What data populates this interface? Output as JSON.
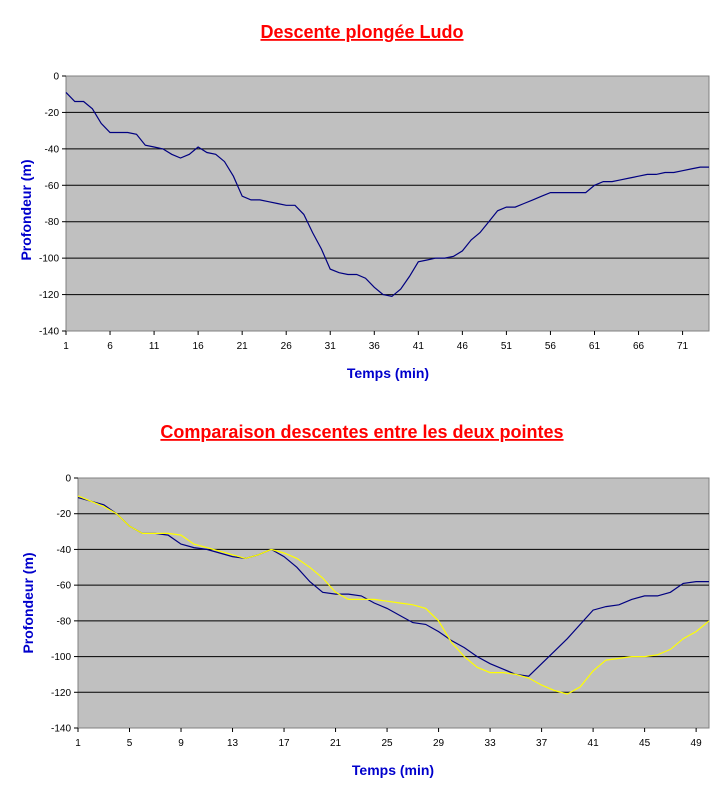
{
  "colors": {
    "plot_bg": "#c0c0c0",
    "title": "#ff0000",
    "axis_title": "#0000cc",
    "line_ludo": "#000080",
    "line_other": "#ffff00",
    "grid": "#000000"
  },
  "chart_data": [
    {
      "type": "line",
      "title": "Descente plongée Ludo",
      "xlabel": "Temps (min)",
      "ylabel": "Profondeur (m)",
      "ylim": [
        -140,
        0
      ],
      "yticks": [
        0,
        -20,
        -40,
        -60,
        -80,
        -100,
        -120,
        -140
      ],
      "xlim": [
        1,
        74
      ],
      "xticks": [
        1,
        6,
        11,
        16,
        21,
        26,
        31,
        36,
        41,
        46,
        51,
        56,
        61,
        66,
        71
      ],
      "grid": true,
      "series": [
        {
          "color": "#000080",
          "x": [
            1,
            2,
            3,
            4,
            5,
            6,
            7,
            8,
            9,
            10,
            11,
            12,
            13,
            14,
            15,
            16,
            17,
            18,
            19,
            20,
            21,
            22,
            23,
            24,
            25,
            26,
            27,
            28,
            29,
            30,
            31,
            32,
            33,
            34,
            35,
            36,
            37,
            38,
            39,
            40,
            41,
            42,
            43,
            44,
            45,
            46,
            47,
            48,
            49,
            50,
            51,
            52,
            53,
            54,
            55,
            56,
            57,
            58,
            59,
            60,
            61,
            62,
            63,
            64,
            65,
            66,
            67,
            68,
            69,
            70,
            71,
            72,
            73,
            74
          ],
          "y": [
            -9,
            -14,
            -14,
            -18,
            -26,
            -31,
            -31,
            -31,
            -32,
            -38,
            -39,
            -40,
            -43,
            -45,
            -43,
            -39,
            -42,
            -43,
            -47,
            -55,
            -66,
            -68,
            -68,
            -69,
            -70,
            -71,
            -71,
            -76,
            -86,
            -95,
            -106,
            -108,
            -109,
            -109,
            -111,
            -116,
            -120,
            -121,
            -117,
            -110,
            -102,
            -101,
            -100,
            -100,
            -99,
            -96,
            -90,
            -86,
            -80,
            -74,
            -72,
            -72,
            -70,
            -68,
            -66,
            -64,
            -64,
            -64,
            -64,
            -64,
            -60,
            -58,
            -58,
            -57,
            -56,
            -55,
            -54,
            -54,
            -53,
            -53,
            -52,
            -51,
            -50,
            -50
          ]
        }
      ]
    },
    {
      "type": "line",
      "title": "Comparaison descentes entre les deux pointes",
      "xlabel": "Temps (min)",
      "ylabel": "Profondeur (m)",
      "ylim": [
        -140,
        0
      ],
      "yticks": [
        0,
        -20,
        -40,
        -60,
        -80,
        -100,
        -120,
        -140
      ],
      "xlim": [
        1,
        50
      ],
      "xticks": [
        1,
        5,
        9,
        13,
        17,
        21,
        25,
        29,
        33,
        37,
        41,
        45,
        49
      ],
      "grid": true,
      "series": [
        {
          "color": "#000080",
          "x": [
            1,
            2,
            3,
            4,
            5,
            6,
            7,
            8,
            9,
            10,
            11,
            12,
            13,
            14,
            15,
            16,
            17,
            18,
            19,
            20,
            21,
            22,
            23,
            24,
            25,
            26,
            27,
            28,
            29,
            30,
            31,
            32,
            33,
            34,
            35,
            36,
            37,
            38,
            39,
            40,
            41,
            42,
            43,
            44,
            45,
            46,
            47,
            48,
            49,
            50
          ],
          "y": [
            -11,
            -13,
            -15,
            -20,
            -27,
            -31,
            -31,
            -32,
            -37,
            -39,
            -40,
            -42,
            -44,
            -45,
            -43,
            -40,
            -44,
            -50,
            -58,
            -64,
            -65,
            -65,
            -66,
            -70,
            -73,
            -77,
            -81,
            -82,
            -86,
            -91,
            -95,
            -100,
            -104,
            -107,
            -110,
            -111,
            -104,
            -97,
            -90,
            -82,
            -74,
            -72,
            -71,
            -68,
            -66,
            -66,
            -64,
            -59,
            -58,
            -58
          ]
        },
        {
          "color": "#ffff00",
          "x": [
            1,
            2,
            3,
            4,
            5,
            6,
            7,
            8,
            9,
            10,
            11,
            12,
            13,
            14,
            15,
            16,
            17,
            18,
            19,
            20,
            21,
            22,
            23,
            24,
            25,
            26,
            27,
            28,
            29,
            30,
            31,
            32,
            33,
            34,
            35,
            36,
            37,
            38,
            39,
            40,
            41,
            42,
            43,
            44,
            45,
            46,
            47,
            48,
            49,
            50
          ],
          "y": [
            -10,
            -13,
            -16,
            -20,
            -27,
            -31,
            -31,
            -31,
            -32,
            -37,
            -39,
            -41,
            -43,
            -45,
            -43,
            -40,
            -42,
            -45,
            -50,
            -56,
            -64,
            -68,
            -68,
            -68,
            -69,
            -70,
            -71,
            -73,
            -80,
            -92,
            -100,
            -106,
            -109,
            -109,
            -110,
            -112,
            -116,
            -119,
            -121,
            -117,
            -108,
            -102,
            -101,
            -100,
            -100,
            -99,
            -96,
            -90,
            -86,
            -80
          ]
        }
      ]
    }
  ]
}
